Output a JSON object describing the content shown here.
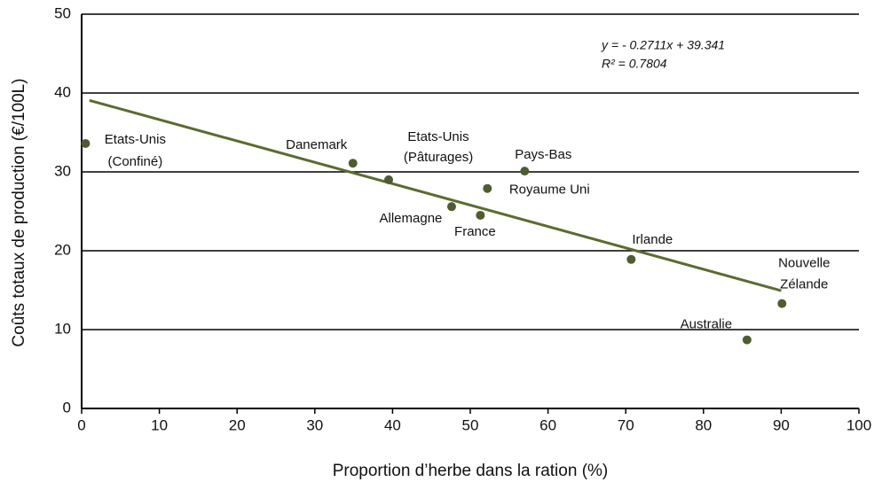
{
  "chart_data": {
    "type": "scatter",
    "x_label": "Proportion d’herbe dans la ration (%)",
    "y_label": "Coûts totaux de production (€/100L)",
    "categories": [
      [
        "Etats-Unis",
        "(Confiné)"
      ],
      [
        "Danemark"
      ],
      [
        "Etats-Unis",
        "(Pâturages)"
      ],
      [
        "Allemagne"
      ],
      [
        "Royaume Uni"
      ],
      [
        "France"
      ],
      [
        "Pays-Bas"
      ],
      [
        "Irlande"
      ],
      [
        "Australie"
      ],
      [
        "Nouvelle",
        "Zélande"
      ]
    ],
    "x": [
      0.5,
      34.9,
      39.5,
      47.6,
      52.2,
      51.3,
      57.0,
      70.7,
      85.6,
      90.1
    ],
    "values": [
      33.6,
      31.1,
      29.0,
      25.6,
      27.9,
      24.5,
      30.1,
      18.9,
      8.7,
      13.3
    ],
    "color": "#4f5c32",
    "trendline": {
      "equation": "y = - 0.2711x + 39.341",
      "r2": "R² = 0.7804",
      "slope": -0.2711,
      "intercept": 39.341,
      "x": [
        1,
        90
      ],
      "color": "#5b6b30"
    },
    "xlim": [
      0,
      100
    ],
    "xticks": [
      0,
      10,
      20,
      30,
      40,
      50,
      60,
      70,
      80,
      90,
      100
    ],
    "ylim": [
      0,
      50
    ],
    "yticks": [
      0,
      10,
      20,
      30,
      40,
      50
    ],
    "grid": true
  }
}
